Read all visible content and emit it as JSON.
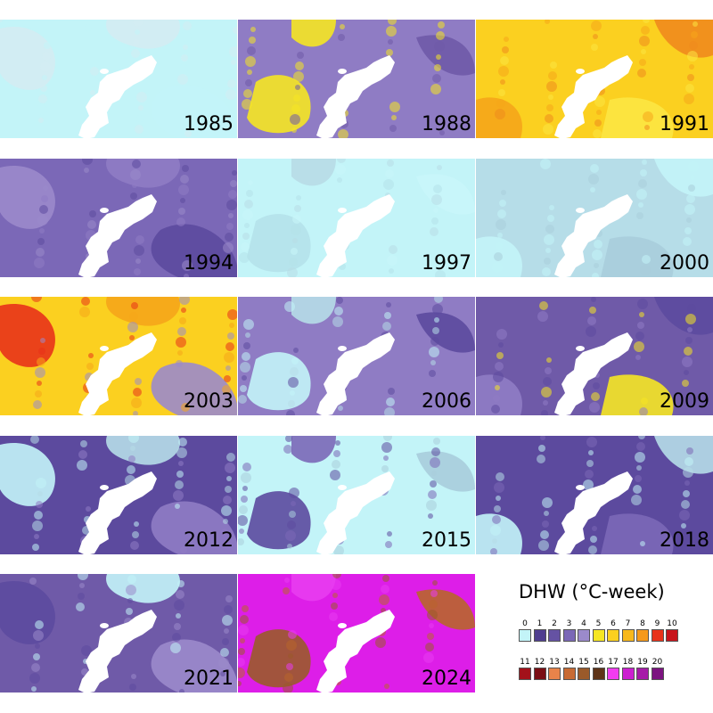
{
  "panels": [
    {
      "year": "1985",
      "base": "#c3f4f8",
      "patches": [
        "#d4ecf2",
        "#c3f4f8",
        "#d4ecf2"
      ]
    },
    {
      "year": "1988",
      "base": "#8f7cc4",
      "patches": [
        "#f5e623",
        "#6f5aa8",
        "#f5e623"
      ]
    },
    {
      "year": "1991",
      "base": "#fbd020",
      "patches": [
        "#f5a51a",
        "#fce642",
        "#ef8a1d"
      ]
    },
    {
      "year": "1994",
      "base": "#7b68b7",
      "patches": [
        "#9b8acb",
        "#5c4a9e",
        "#8f7cc4"
      ]
    },
    {
      "year": "1997",
      "base": "#c3f4f8",
      "patches": [
        "#b5e2ea",
        "#c9f6fa",
        "#b8dce6"
      ]
    },
    {
      "year": "2000",
      "base": "#b6dde8",
      "patches": [
        "#c3f4f8",
        "#a9cddb",
        "#c3f4f8"
      ]
    },
    {
      "year": "2003",
      "base": "#fbd020",
      "patches": [
        "#e8321a",
        "#9b8acb",
        "#f5a51a"
      ]
    },
    {
      "year": "2006",
      "base": "#8f7cc4",
      "patches": [
        "#c3f4f8",
        "#5c4a9e",
        "#b6dde8"
      ]
    },
    {
      "year": "2009",
      "base": "#6f5aa8",
      "patches": [
        "#8f7cc4",
        "#f5e623",
        "#5c4a9e"
      ]
    },
    {
      "year": "2012",
      "base": "#5c4a9e",
      "patches": [
        "#c3f4f8",
        "#8f7cc4",
        "#b6dde8"
      ]
    },
    {
      "year": "2015",
      "base": "#c3f4f8",
      "patches": [
        "#5c4a9e",
        "#a9cddb",
        "#7b68b7"
      ]
    },
    {
      "year": "2018",
      "base": "#5c4a9e",
      "patches": [
        "#c3f4f8",
        "#7b68b7",
        "#b6dde8"
      ]
    },
    {
      "year": "2021",
      "base": "#6f5aa8",
      "patches": [
        "#5c4a9e",
        "#9b8acb",
        "#c3f4f8"
      ]
    },
    {
      "year": "2024",
      "base": "#dd1ee8",
      "patches": [
        "#9a5a2a",
        "#b8652b",
        "#e83cf0"
      ]
    }
  ],
  "legend": {
    "title": "DHW (°C-week)",
    "row1": [
      {
        "label": "0",
        "color": "#c3f4f8"
      },
      {
        "label": "1",
        "color": "#4f3d8f"
      },
      {
        "label": "2",
        "color": "#6552a3"
      },
      {
        "label": "3",
        "color": "#7b68b7"
      },
      {
        "label": "4",
        "color": "#9b8acb"
      },
      {
        "label": "5",
        "color": "#f5e623"
      },
      {
        "label": "6",
        "color": "#fbd020"
      },
      {
        "label": "7",
        "color": "#f8b81c"
      },
      {
        "label": "8",
        "color": "#f5991a"
      },
      {
        "label": "9",
        "color": "#e8321a"
      },
      {
        "label": "10",
        "color": "#c8141c"
      }
    ],
    "row2": [
      {
        "label": "11",
        "color": "#a3111a"
      },
      {
        "label": "12",
        "color": "#7a0e14"
      },
      {
        "label": "13",
        "color": "#e8834a"
      },
      {
        "label": "14",
        "color": "#c86b34"
      },
      {
        "label": "15",
        "color": "#9a5a2a"
      },
      {
        "label": "16",
        "color": "#5e3418"
      },
      {
        "label": "17",
        "color": "#f23cf0"
      },
      {
        "label": "18",
        "color": "#cc1fd0"
      },
      {
        "label": "19",
        "color": "#a61aa8"
      },
      {
        "label": "20",
        "color": "#7c1480"
      }
    ]
  }
}
